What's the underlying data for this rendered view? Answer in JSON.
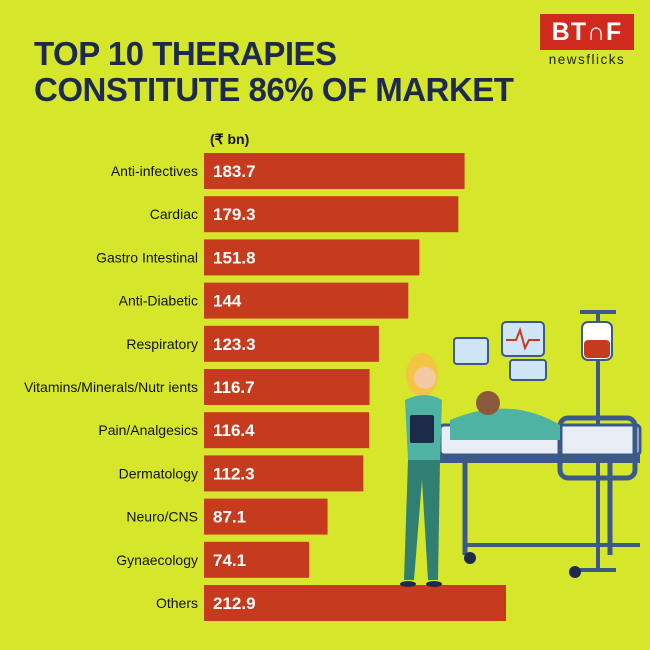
{
  "title_lines": [
    "TOP 10 THERAPIES",
    "CONSTITUTE 86% OF MARKET"
  ],
  "logo": {
    "brand": "BT∩F",
    "tagline": "newsflicks"
  },
  "colors": {
    "background": "#d6e62b",
    "bar": "#c63b1e",
    "title": "#1d2a4a",
    "logo": "#d02a1f"
  },
  "chart_data": {
    "type": "bar",
    "orientation": "horizontal",
    "title": "TOP 10 THERAPIES CONSTITUTE 86% OF MARKET",
    "unit_label": "(₹ bn)",
    "categories": [
      "Anti-infectives",
      "Cardiac",
      "Gastro Intestinal",
      "Anti-Diabetic",
      "Respiratory",
      "Vitamins/Minerals/Nutr ients",
      "Pain/Analgesics",
      "Dermatology",
      "Neuro/CNS",
      "Gynaecology",
      "Others"
    ],
    "values": [
      183.7,
      179.3,
      151.8,
      144,
      123.3,
      116.7,
      116.4,
      112.3,
      87.1,
      74.1,
      212.9
    ],
    "value_labels": [
      "183.7",
      "179.3",
      "151.8",
      "144",
      "123.3",
      "116.7",
      "116.4",
      "112.3",
      "87.1",
      "74.1",
      "212.9"
    ],
    "grid": false,
    "legend": "none"
  }
}
